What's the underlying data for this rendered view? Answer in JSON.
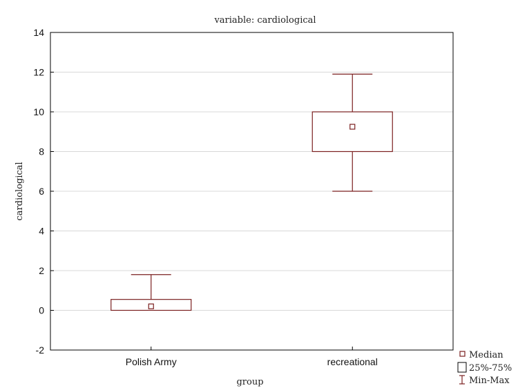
{
  "chart_data": {
    "type": "box",
    "title": "variable: cardiological",
    "xlabel": "group",
    "ylabel": "cardiological",
    "ylim": [
      -2,
      14
    ],
    "yticks": [
      -2,
      0,
      2,
      4,
      6,
      8,
      10,
      12,
      14
    ],
    "grid": true,
    "categories": [
      "Polish Army",
      "recreational"
    ],
    "boxes": [
      {
        "category": "Polish Army",
        "min": 0,
        "q1": 0,
        "median": 0.2,
        "q3": 0.55,
        "max": 1.8
      },
      {
        "category": "recreational",
        "min": 6,
        "q1": 8,
        "median": 9.25,
        "q3": 10,
        "max": 11.9
      }
    ],
    "legend": {
      "placement": "bottom-right",
      "items": [
        {
          "symbol": "median-square",
          "label": "Median"
        },
        {
          "symbol": "box",
          "label": "25%-75%"
        },
        {
          "symbol": "whisker",
          "label": "Min-Max"
        }
      ]
    },
    "colors": {
      "stroke": "#7a1f1f",
      "grid": "#d8d8d8",
      "frame": "#000000"
    }
  }
}
